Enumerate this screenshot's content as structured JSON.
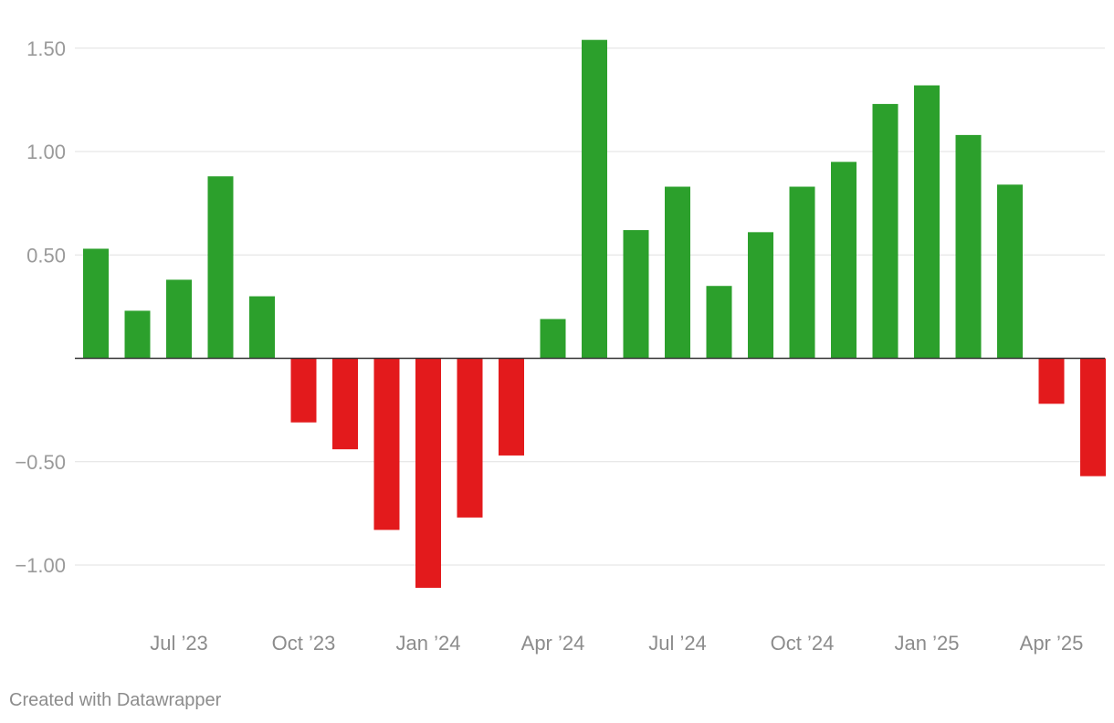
{
  "footer": {
    "credit": "Created with Datawrapper"
  },
  "colors": {
    "positive": "#2ca02c",
    "negative": "#e31a1c",
    "grid": "#e0e0e0",
    "zero_line": "#333333",
    "tick_text": "#9a9a9a"
  },
  "chart_data": {
    "type": "bar",
    "title": "",
    "xlabel": "",
    "ylabel": "",
    "ylim": [
      -1.2,
      1.6
    ],
    "yticks": [
      1.5,
      1.0,
      0.5,
      -0.5,
      -1.0
    ],
    "ytick_labels": [
      "1.50",
      "1.00",
      "0.50",
      "−0.50",
      "−1.00"
    ],
    "xtick_labels": [
      {
        "label": "Jul ’23",
        "index": 2
      },
      {
        "label": "Oct ’23",
        "index": 5
      },
      {
        "label": "Jan ’24",
        "index": 8
      },
      {
        "label": "Apr ’24",
        "index": 11
      },
      {
        "label": "Jul ’24",
        "index": 14
      },
      {
        "label": "Oct ’24",
        "index": 17
      },
      {
        "label": "Jan ’25",
        "index": 20
      },
      {
        "label": "Apr ’25",
        "index": 23
      }
    ],
    "categories": [
      "May 2023",
      "Jun 2023",
      "Jul 2023",
      "Aug 2023",
      "Sep 2023",
      "Oct 2023",
      "Nov 2023",
      "Dec 2023",
      "Jan 2024",
      "Feb 2024",
      "Mar 2024",
      "Apr 2024",
      "May 2024",
      "Jun 2024",
      "Jul 2024",
      "Aug 2024",
      "Sep 2024",
      "Oct 2024",
      "Nov 2024",
      "Dec 2024",
      "Jan 2025",
      "Feb 2025",
      "Mar 2025",
      "Apr 2025",
      "May 2025"
    ],
    "values": [
      0.53,
      0.23,
      0.38,
      0.88,
      0.3,
      -0.31,
      -0.44,
      -0.83,
      -1.11,
      -0.77,
      -0.47,
      0.19,
      1.54,
      0.62,
      0.83,
      0.35,
      0.61,
      0.83,
      0.95,
      1.23,
      1.32,
      1.08,
      0.84,
      -0.22,
      -0.57
    ],
    "grid": true,
    "legend": "none"
  }
}
